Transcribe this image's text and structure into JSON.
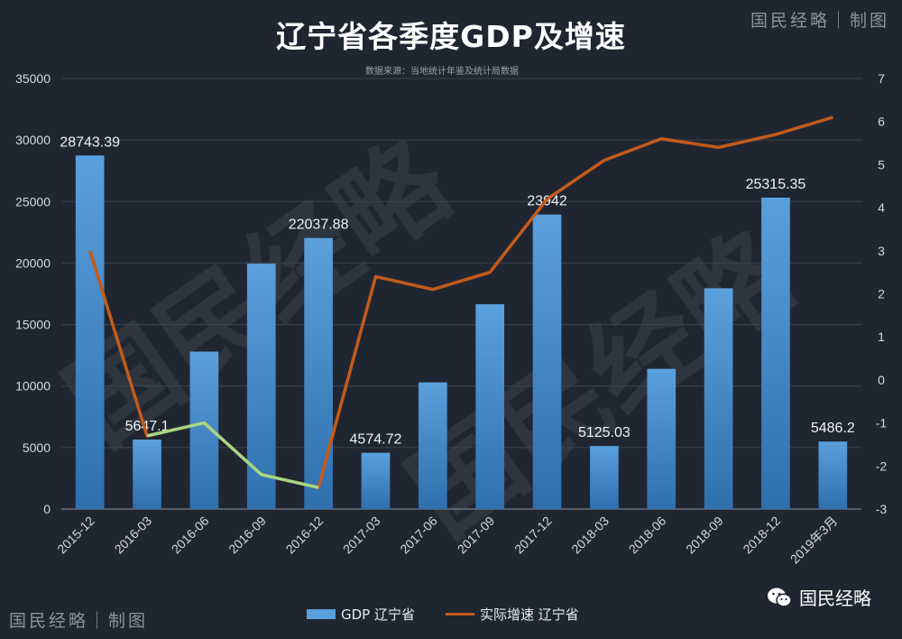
{
  "header": {
    "title": "辽宁省各季度GDP及增速",
    "source": "数据来源：当地统计年鉴及统计局数据",
    "brand_top": "国民经略｜制图",
    "brand_bottom_left": "国民经略｜制图",
    "brand_bottom_right": "国民经略",
    "watermark": "国民经略"
  },
  "legend": {
    "bar_label": "GDP 辽宁省",
    "line_label": "实际增速 辽宁省"
  },
  "colors": {
    "bar": "#5aa0dc",
    "line": "#c55a1a",
    "line_highlight": "#a6d785",
    "background": "#1f2631"
  },
  "chart_data": {
    "type": "bar",
    "title": "辽宁省各季度GDP及增速",
    "categories": [
      "2015-12",
      "2016-03",
      "2016-06",
      "2016-09",
      "2016-12",
      "2017-03",
      "2017-06",
      "2017-09",
      "2017-12",
      "2018-03",
      "2018-06",
      "2018-09",
      "2018-12",
      "2019年3月"
    ],
    "series": [
      {
        "name": "GDP 辽宁省",
        "type": "bar",
        "axis": "left",
        "values": [
          28743.39,
          5647.1,
          12800,
          19950,
          22037.88,
          4574.72,
          10300,
          16650,
          23942,
          5125.03,
          11400,
          17950,
          25315.35,
          5486.2
        ],
        "data_labels": [
          "28743.39",
          "5647.1",
          "",
          "",
          "22037.88",
          "4574.72",
          "",
          "",
          "23942",
          "5125.03",
          "",
          "",
          "25315.35",
          "5486.2"
        ]
      },
      {
        "name": "实际增速 辽宁省",
        "type": "line",
        "axis": "right",
        "values": [
          3.0,
          -1.3,
          -1.0,
          -2.2,
          -2.5,
          2.4,
          2.1,
          2.5,
          4.2,
          5.1,
          5.6,
          5.4,
          5.7,
          6.1
        ],
        "highlight_segment": [
          1,
          4
        ]
      }
    ],
    "ylim_left": [
      0,
      35000
    ],
    "yticks_left": [
      "0",
      "5000",
      "10000",
      "15000",
      "20000",
      "25000",
      "30000",
      "35000"
    ],
    "ylim_right": [
      -3,
      7
    ],
    "yticks_right": [
      "-3",
      "-2",
      "-1",
      "0",
      "1",
      "2",
      "3",
      "4",
      "5",
      "6",
      "7"
    ],
    "grid": true,
    "legend_position": "bottom"
  }
}
